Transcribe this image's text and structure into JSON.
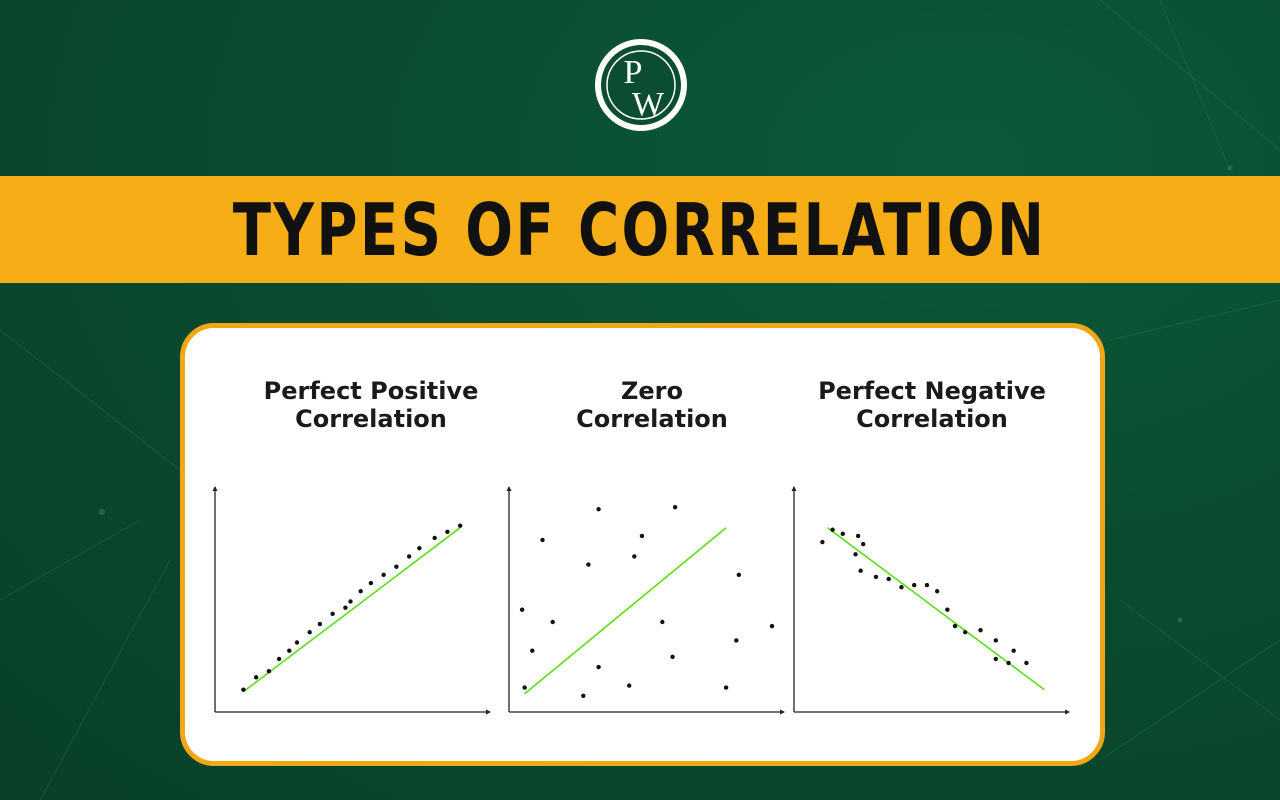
{
  "logo": {
    "letter_top": "P",
    "letter_bottom": "W",
    "ring_color": "#ffffff",
    "fill_color": "#0b4d31"
  },
  "banner": {
    "title": "TYPES OF CORRELATION",
    "color": "#f6ad16"
  },
  "card": {
    "border_color": "#f2a816"
  },
  "panels": [
    {
      "title_line1": "Perfect Positive",
      "title_line2": "Correlation"
    },
    {
      "title_line1": "Zero",
      "title_line2": "Correlation"
    },
    {
      "title_line1": "Perfect Negative",
      "title_line2": "Correlation"
    }
  ],
  "trend_line_color": "#5ddc1c",
  "chart_data": [
    {
      "type": "scatter",
      "title": "Perfect Positive Correlation",
      "xlim": [
        0,
        10
      ],
      "ylim": [
        0,
        10
      ],
      "points": [
        [
          0.8,
          0.7
        ],
        [
          1.3,
          1.3
        ],
        [
          1.8,
          1.6
        ],
        [
          2.2,
          2.2
        ],
        [
          2.6,
          2.6
        ],
        [
          2.9,
          3.0
        ],
        [
          3.4,
          3.5
        ],
        [
          3.8,
          3.9
        ],
        [
          4.3,
          4.4
        ],
        [
          4.8,
          4.7
        ],
        [
          5.0,
          5.0
        ],
        [
          5.4,
          5.5
        ],
        [
          5.8,
          5.9
        ],
        [
          6.3,
          6.3
        ],
        [
          6.8,
          6.7
        ],
        [
          7.3,
          7.2
        ],
        [
          7.7,
          7.6
        ],
        [
          8.3,
          8.1
        ],
        [
          8.8,
          8.4
        ],
        [
          9.3,
          8.7
        ]
      ],
      "trend": [
        [
          0.8,
          0.6
        ],
        [
          9.3,
          8.6
        ]
      ]
    },
    {
      "type": "scatter",
      "title": "Zero Correlation",
      "xlim": [
        0,
        10
      ],
      "ylim": [
        0,
        10
      ],
      "points": [
        [
          3.2,
          9.5
        ],
        [
          6.2,
          9.6
        ],
        [
          1.0,
          8.0
        ],
        [
          4.9,
          8.2
        ],
        [
          2.8,
          6.8
        ],
        [
          4.6,
          7.2
        ],
        [
          8.7,
          6.3
        ],
        [
          0.2,
          4.6
        ],
        [
          1.4,
          4.0
        ],
        [
          5.7,
          4.0
        ],
        [
          0.6,
          2.6
        ],
        [
          8.6,
          3.1
        ],
        [
          10.0,
          3.8
        ],
        [
          3.2,
          1.8
        ],
        [
          6.1,
          2.3
        ],
        [
          0.3,
          0.8
        ],
        [
          4.4,
          0.9
        ],
        [
          2.6,
          0.4
        ],
        [
          8.2,
          0.8
        ]
      ],
      "trend": [
        [
          0.3,
          0.5
        ],
        [
          8.2,
          8.6
        ]
      ]
    },
    {
      "type": "scatter",
      "title": "Perfect Negative Correlation",
      "xlim": [
        0,
        10
      ],
      "ylim": [
        0,
        10
      ],
      "points": [
        [
          1.2,
          8.5
        ],
        [
          1.6,
          8.3
        ],
        [
          2.2,
          8.2
        ],
        [
          2.4,
          7.8
        ],
        [
          0.8,
          7.9
        ],
        [
          2.1,
          7.3
        ],
        [
          2.3,
          6.5
        ],
        [
          2.9,
          6.2
        ],
        [
          3.4,
          6.1
        ],
        [
          3.9,
          5.7
        ],
        [
          4.4,
          5.8
        ],
        [
          4.9,
          5.8
        ],
        [
          5.3,
          5.5
        ],
        [
          5.7,
          4.6
        ],
        [
          6.0,
          3.8
        ],
        [
          6.4,
          3.5
        ],
        [
          7.0,
          3.6
        ],
        [
          7.6,
          3.1
        ],
        [
          7.6,
          2.2
        ],
        [
          8.1,
          2.0
        ],
        [
          8.3,
          2.6
        ],
        [
          8.8,
          2.0
        ]
      ],
      "trend": [
        [
          1.0,
          8.6
        ],
        [
          9.5,
          0.7
        ]
      ]
    }
  ]
}
